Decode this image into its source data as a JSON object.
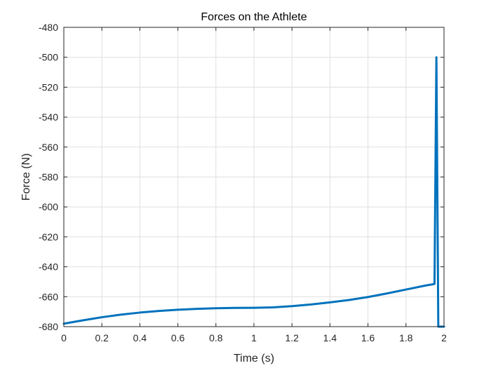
{
  "chart_data": {
    "type": "line",
    "title": "Forces on the Athlete",
    "xlabel": "Time (s)",
    "ylabel": "Force (N)",
    "xlim": [
      0,
      2
    ],
    "ylim": [
      -680,
      -480
    ],
    "grid": true,
    "x_ticks": [
      "0",
      "0.2",
      "0.4",
      "0.6",
      "0.8",
      "1",
      "1.2",
      "1.4",
      "1.6",
      "1.8",
      "2"
    ],
    "y_ticks": [
      "-480",
      "-500",
      "-520",
      "-540",
      "-560",
      "-580",
      "-600",
      "-620",
      "-640",
      "-660",
      "-680"
    ],
    "series": [
      {
        "color": "#0072BD",
        "x": [
          0,
          0.1,
          0.2,
          0.3,
          0.4,
          0.5,
          0.6,
          0.7,
          0.8,
          0.9,
          1.0,
          1.1,
          1.2,
          1.3,
          1.4,
          1.5,
          1.6,
          1.7,
          1.8,
          1.9,
          1.95,
          1.96,
          1.97,
          1.98,
          2.0
        ],
        "y": [
          -678,
          -675.8,
          -673.7,
          -672,
          -670.6,
          -669.5,
          -668.7,
          -668.1,
          -667.7,
          -667.5,
          -667.4,
          -667.1,
          -666.3,
          -665.2,
          -663.8,
          -662.2,
          -660.2,
          -657.8,
          -655.2,
          -652.6,
          -651.5,
          -500,
          -680,
          -680,
          -680
        ]
      }
    ]
  }
}
